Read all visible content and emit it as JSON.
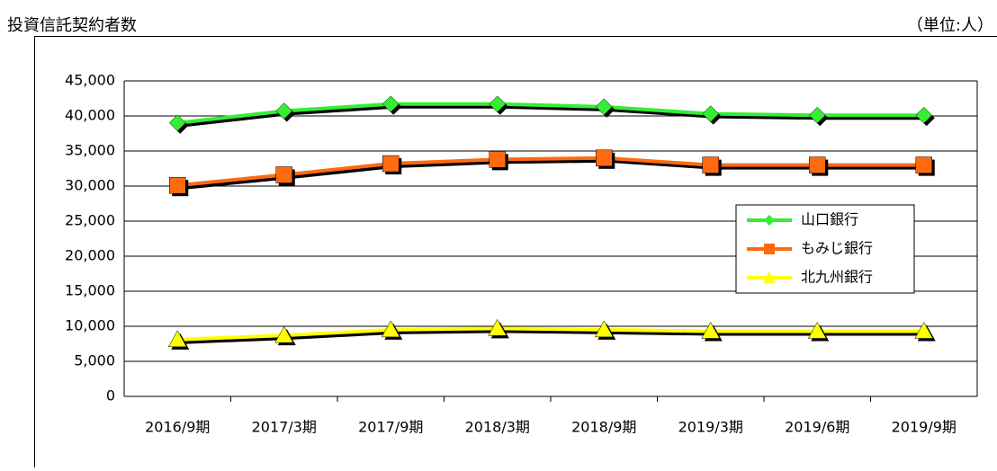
{
  "chart_data": {
    "type": "line",
    "title": "投資信託契約者数",
    "unit_label": "（単位:人）",
    "categories": [
      "2016/9期",
      "2017/3期",
      "2017/9期",
      "2018/3期",
      "2018/9期",
      "2019/3期",
      "2019/6期",
      "2019/9期"
    ],
    "series": [
      {
        "name": "山口銀行",
        "color": "#33ee33",
        "marker": "diamond",
        "values": [
          39000,
          40700,
          41700,
          41700,
          41300,
          40300,
          40100,
          40100
        ]
      },
      {
        "name": "もみじ銀行",
        "color": "#ff6a10",
        "marker": "square",
        "values": [
          30100,
          31600,
          33200,
          33800,
          34000,
          33000,
          33000,
          33000
        ]
      },
      {
        "name": "北九州銀行",
        "color": "#ffff00",
        "marker": "triangle",
        "values": [
          8100,
          8700,
          9500,
          9700,
          9500,
          9300,
          9300,
          9300
        ]
      }
    ],
    "ylim": [
      0,
      45000
    ],
    "yticks": [
      0,
      {
        "value": 5000,
        "label": "5,000"
      },
      {
        "value": 10000,
        "label": "10,000"
      },
      {
        "value": 15000,
        "label": "15,000"
      },
      {
        "value": 20000,
        "label": "20,000"
      },
      {
        "value": 25000,
        "label": "25,000"
      },
      {
        "value": 30000,
        "label": "30,000"
      },
      {
        "value": 35000,
        "label": "35,000"
      },
      {
        "value": 40000,
        "label": "40,000"
      },
      {
        "value": 45000,
        "label": "45,000"
      }
    ],
    "grid": true,
    "legend": "right"
  }
}
